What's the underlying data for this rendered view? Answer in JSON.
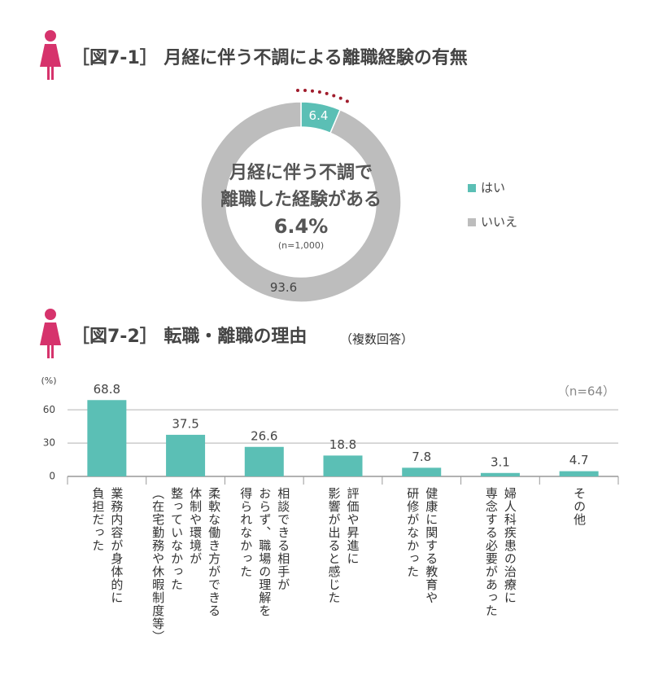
{
  "chart_data": [
    {
      "type": "pie",
      "title": "［図7-1］ 月経に伴う不調による離職経験の有無",
      "annotations": [
        "月経に伴う不調で",
        "離職した経験がある",
        "6.4%",
        "(n=1,000)"
      ],
      "categories": [
        "はい",
        "いいえ"
      ],
      "values": [
        6.4,
        93.6
      ],
      "colors": [
        "#5bbfb5",
        "#bdbdbd"
      ],
      "legend": "right"
    },
    {
      "type": "bar",
      "title": "［図7-2］ 転職・離職の理由",
      "subtitle": "（複数回答）",
      "y_label": "(%)",
      "note": "（n=64）",
      "categories": [
        [
          "業務内容が身体的に",
          "負担だった"
        ],
        [
          "柔軟な働き方ができる",
          "体制や環境が",
          "整っていなかった",
          "（在宅勤務や休暇制度等）"
        ],
        [
          "相談できる相手が",
          "おらず、職場の理解を",
          "得られなかった"
        ],
        [
          "評価や昇進に",
          "影響が出ると感じた"
        ],
        [
          "健康に関する教育や",
          "研修がなかった"
        ],
        [
          "婦人科疾患の治療に",
          "専念する必要があった"
        ],
        [
          "その他"
        ]
      ],
      "values": [
        68.8,
        37.5,
        26.6,
        18.8,
        7.8,
        3.1,
        4.7
      ],
      "color": "#5bbfb5",
      "ylim": [
        0,
        80
      ],
      "yticks": [
        0,
        30,
        60
      ],
      "grid": true
    }
  ]
}
